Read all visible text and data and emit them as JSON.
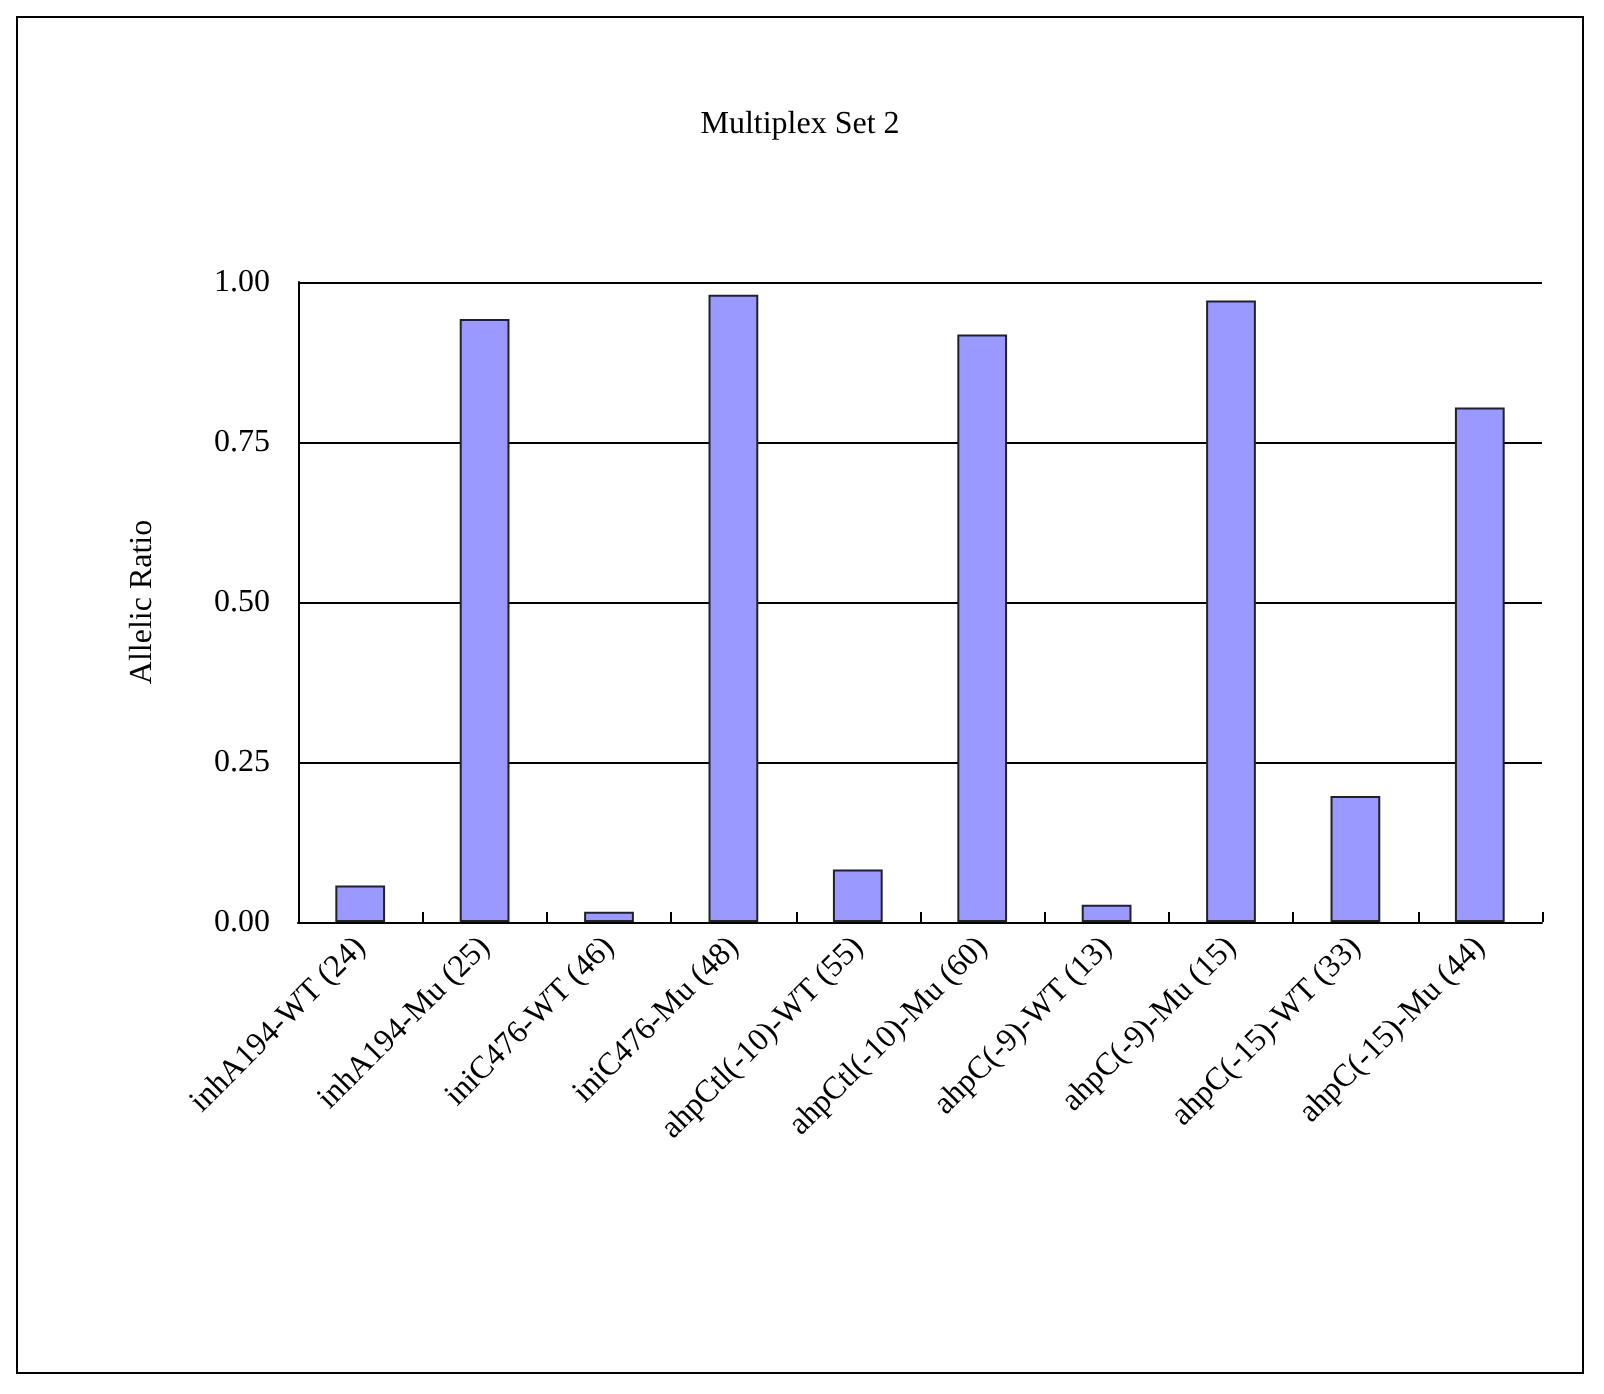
{
  "chart_data": {
    "type": "bar",
    "title": "Multiplex Set 2",
    "ylabel": "Allelic Ratio",
    "categories": [
      "inhA194-WT (24)",
      "inhA194-Mu (25)",
      "iniC476-WT (46)",
      "iniC476-Mu (48)",
      "ahpCtl(-10)-WT (55)",
      "ahpCtl(-10)-Mu (60)",
      "ahpC(-9)-WT (13)",
      "ahpC(-9)-Mu (15)",
      "ahpC(-15)-WT (33)",
      "ahpC(-15)-Mu (44)"
    ],
    "values": [
      0.057,
      0.942,
      0.016,
      0.98,
      0.082,
      0.918,
      0.027,
      0.971,
      0.197,
      0.804
    ],
    "color": "#9999ff",
    "ylim": [
      0,
      1
    ],
    "yticks": [
      {
        "value": 0,
        "label": "0.00"
      },
      {
        "value": 0.25,
        "label": "0.25"
      },
      {
        "value": 0.5,
        "label": "0.50"
      },
      {
        "value": 0.75,
        "label": "0.75"
      },
      {
        "value": 1,
        "label": "1.00"
      }
    ],
    "grid": "y"
  }
}
